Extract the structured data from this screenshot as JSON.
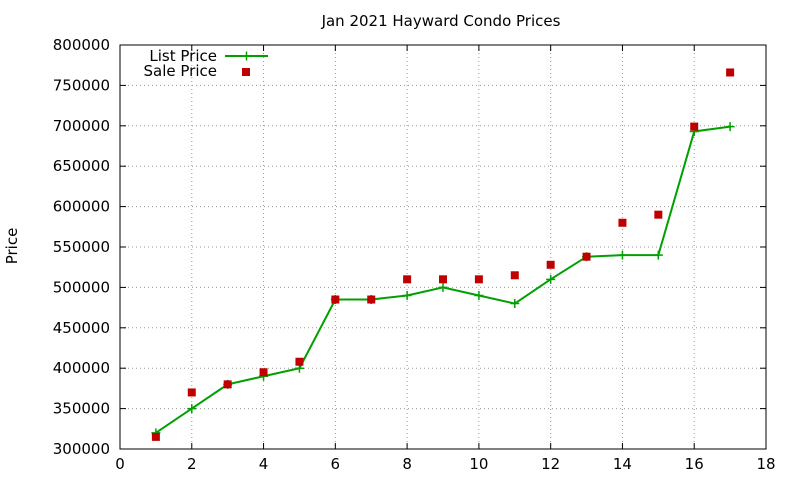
{
  "chart_data": {
    "type": "line",
    "title": "Jan 2021 Hayward Condo Prices",
    "xlabel": "",
    "ylabel": "Price",
    "xlim": [
      0,
      18
    ],
    "ylim": [
      300000,
      800000
    ],
    "xticks": [
      0,
      2,
      4,
      6,
      8,
      10,
      12,
      14,
      16,
      18
    ],
    "yticks": [
      300000,
      350000,
      400000,
      450000,
      500000,
      550000,
      600000,
      650000,
      700000,
      750000,
      800000
    ],
    "grid": true,
    "legend_position": "top-left",
    "series": [
      {
        "name": "List Price",
        "style": "line+cross",
        "color": "#00a000",
        "x": [
          1,
          2,
          3,
          4,
          5,
          6,
          7,
          8,
          9,
          10,
          11,
          12,
          13,
          14,
          15,
          16,
          17
        ],
        "y": [
          320000,
          350000,
          380000,
          390000,
          400000,
          485000,
          485000,
          490000,
          500000,
          490000,
          480000,
          510000,
          538000,
          540000,
          540000,
          693000,
          699000
        ]
      },
      {
        "name": "Sale Price",
        "style": "square-marker",
        "color": "#c00000",
        "x": [
          1,
          2,
          3,
          4,
          5,
          6,
          7,
          8,
          9,
          10,
          11,
          12,
          13,
          14,
          15,
          16,
          17
        ],
        "y": [
          315000,
          370000,
          380000,
          395000,
          408000,
          485000,
          485000,
          510000,
          510000,
          510000,
          515000,
          528000,
          538000,
          580000,
          590000,
          699000,
          766000
        ]
      }
    ]
  }
}
